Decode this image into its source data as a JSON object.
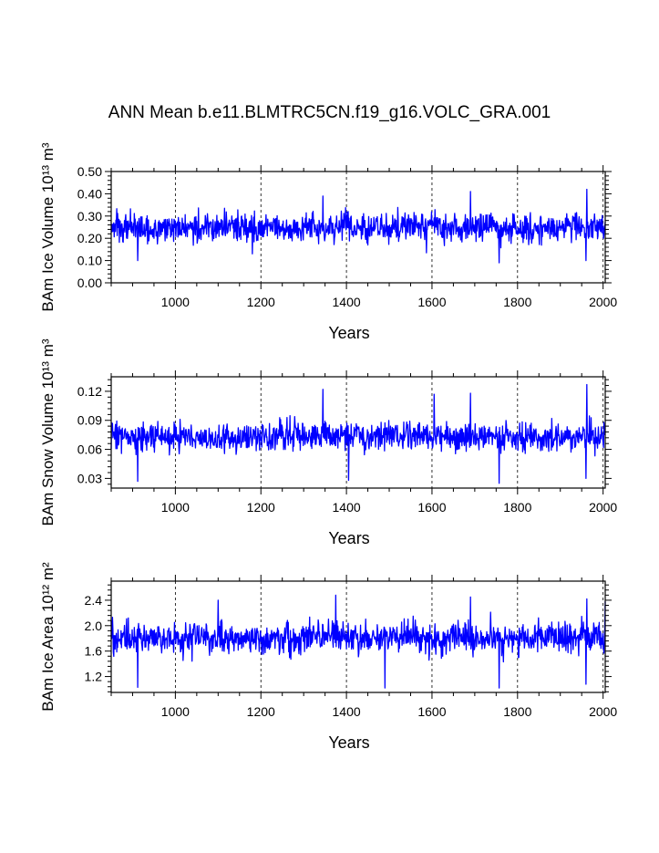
{
  "figure": {
    "title": "ANN Mean b.e11.BLMTRC5CN.f19_g16.VOLC_GRA.001"
  },
  "colors": {
    "series": "#0000ff",
    "axes": "#000000",
    "grid": "#000000"
  },
  "chart_data": [
    {
      "type": "line",
      "ylabel": "BAm Ice Volume 10¹³ m³",
      "xlabel": "Years",
      "xlim": [
        850,
        2005
      ],
      "ylim": [
        0.0,
        0.5
      ],
      "xticks": [
        1000,
        1200,
        1400,
        1600,
        1800,
        2000
      ],
      "yticks": [
        0.0,
        0.1,
        0.2,
        0.3,
        0.4,
        0.5
      ],
      "ytick_labels": [
        "0.00",
        "0.10",
        "0.20",
        "0.30",
        "0.40",
        "0.50"
      ],
      "grid": "vertical dashed at major x ticks",
      "series": [
        {
          "x_start": 850,
          "x_end": 2005,
          "mean": 0.25,
          "typical_range": [
            0.12,
            0.36
          ],
          "min": 0.09,
          "min_year": 1757,
          "max": 0.42,
          "max_year": 1962,
          "peaks": [
            [
              1345,
              0.39
            ],
            [
              1690,
              0.41
            ],
            [
              1962,
              0.42
            ]
          ],
          "troughs": [
            [
              912,
              0.1
            ],
            [
              1180,
              0.13
            ],
            [
              1757,
              0.09
            ],
            [
              1960,
              0.1
            ]
          ]
        }
      ]
    },
    {
      "type": "line",
      "ylabel": "BAm Snow Volume 10¹³ m³",
      "xlabel": "Years",
      "xlim": [
        850,
        2005
      ],
      "ylim": [
        0.02,
        0.135
      ],
      "xticks": [
        1000,
        1200,
        1400,
        1600,
        1800,
        2000
      ],
      "yticks": [
        0.03,
        0.06,
        0.09,
        0.12
      ],
      "ytick_labels": [
        "0.03",
        "0.06",
        "0.09",
        "0.12"
      ],
      "grid": "vertical dashed at major x ticks",
      "series": [
        {
          "x_start": 850,
          "x_end": 2005,
          "mean": 0.073,
          "typical_range": [
            0.045,
            0.1
          ],
          "min": 0.025,
          "min_year": 1757,
          "max": 0.127,
          "max_year": 1962,
          "peaks": [
            [
              1345,
              0.122
            ],
            [
              1605,
              0.117
            ],
            [
              1690,
              0.118
            ],
            [
              1962,
              0.127
            ]
          ],
          "troughs": [
            [
              912,
              0.027
            ],
            [
              1405,
              0.028
            ],
            [
              1757,
              0.025
            ],
            [
              1960,
              0.03
            ]
          ]
        }
      ]
    },
    {
      "type": "line",
      "ylabel": "BAm Ice Area 10¹² m²",
      "xlabel": "Years",
      "xlim": [
        850,
        2005
      ],
      "ylim": [
        0.95,
        2.7
      ],
      "xticks": [
        1000,
        1200,
        1400,
        1600,
        1800,
        2000
      ],
      "yticks": [
        1.2,
        1.6,
        2.0,
        2.4
      ],
      "ytick_labels": [
        "1.2",
        "1.6",
        "2.0",
        "2.4"
      ],
      "grid": "vertical dashed at major x ticks",
      "series": [
        {
          "x_start": 850,
          "x_end": 2005,
          "mean": 1.8,
          "typical_range": [
            1.35,
            2.25
          ],
          "min": 1.02,
          "min_year": 1757,
          "max": 2.48,
          "max_year": 1375,
          "peaks": [
            [
              1100,
              2.4
            ],
            [
              1375,
              2.48
            ],
            [
              1690,
              2.45
            ],
            [
              1962,
              2.42
            ],
            [
              2005,
              2.38
            ]
          ],
          "troughs": [
            [
              912,
              1.03
            ],
            [
              1490,
              1.02
            ],
            [
              1757,
              1.02
            ],
            [
              1960,
              1.08
            ]
          ]
        }
      ]
    }
  ]
}
